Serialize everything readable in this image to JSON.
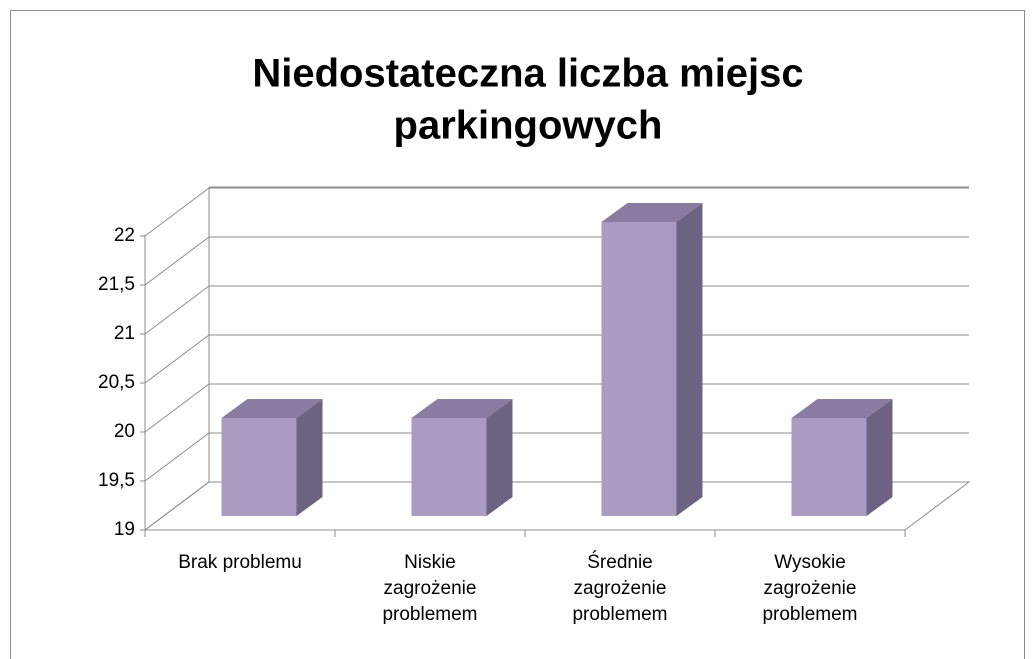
{
  "chart_data": {
    "type": "bar3d",
    "title": [
      "Niedostateczna liczba miejsc",
      "parkingowych"
    ],
    "categories": [
      "Brak problemu",
      "Niskie\nzagrożenie\nproblemem",
      "Średnie\nzagrożenie\nproblemem",
      "Wysokie\nzagrożenie\nproblemem"
    ],
    "values": [
      20,
      20,
      22,
      20
    ],
    "color": "#a99bc1",
    "ylim": [
      19,
      22.5
    ],
    "yticks": [
      19,
      {
        "value": 19.5,
        "label": "19,5"
      },
      20,
      {
        "value": 20.5,
        "label": "20,5"
      },
      21,
      {
        "value": 21.5,
        "label": "21,5"
      },
      22
    ],
    "grid": true
  }
}
